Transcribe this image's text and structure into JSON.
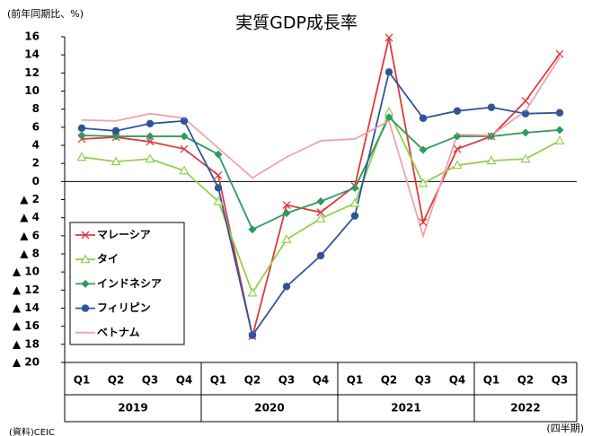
{
  "chart_data": {
    "type": "line",
    "title": "実質GDP成長率",
    "y_label": "(前年同期比、%)",
    "x_unit": "(四半期)",
    "source": "(資料)CEIC",
    "categories": [
      "Q1",
      "Q2",
      "Q3",
      "Q4",
      "Q1",
      "Q2",
      "Q3",
      "Q4",
      "Q1",
      "Q2",
      "Q3",
      "Q4",
      "Q1",
      "Q2",
      "Q3"
    ],
    "years": [
      "2019",
      "2020",
      "2021",
      "2022"
    ],
    "series": [
      {
        "name": "マレーシア",
        "color": "#e0393b",
        "marker": "x",
        "values": [
          4.7,
          4.9,
          4.4,
          3.6,
          0.7,
          -17.1,
          -2.6,
          -3.4,
          -0.5,
          15.9,
          -4.5,
          3.6,
          5.0,
          8.9,
          14.1
        ]
      },
      {
        "name": "タイ",
        "color": "#92cf4f",
        "marker": "triangle",
        "values": [
          2.7,
          2.2,
          2.5,
          1.2,
          -2.2,
          -12.3,
          -6.4,
          -4.1,
          -2.4,
          7.7,
          -0.2,
          1.8,
          2.3,
          2.5,
          4.5
        ]
      },
      {
        "name": "インドネシア",
        "color": "#2e9a5c",
        "marker": "diamond",
        "values": [
          5.1,
          5.0,
          5.0,
          5.0,
          3.0,
          -5.3,
          -3.5,
          -2.2,
          -0.7,
          7.1,
          3.5,
          5.0,
          5.0,
          5.4,
          5.7
        ]
      },
      {
        "name": "フィリピン",
        "color": "#2f5597",
        "marker": "circle",
        "values": [
          5.9,
          5.6,
          6.4,
          6.7,
          -0.7,
          -17.0,
          -11.6,
          -8.2,
          -3.8,
          12.1,
          7.0,
          7.8,
          8.2,
          7.5,
          7.6
        ]
      },
      {
        "name": "ベトナム",
        "color": "#f3a3a6",
        "marker": "none",
        "values": [
          6.8,
          6.7,
          7.5,
          7.0,
          3.7,
          0.4,
          2.7,
          4.5,
          4.7,
          6.7,
          -6.0,
          5.2,
          5.1,
          7.8,
          13.7
        ]
      }
    ],
    "ylim": [
      -20,
      16
    ],
    "yticks": [
      16,
      14,
      12,
      10,
      8,
      6,
      4,
      2,
      0,
      {
        "value": -2,
        "label": "▲ 2"
      },
      {
        "value": -4,
        "label": "▲ 4"
      },
      {
        "value": -6,
        "label": "▲ 6"
      },
      {
        "value": -8,
        "label": "▲ 8"
      },
      {
        "value": -10,
        "label": "▲ 10"
      },
      {
        "value": -12,
        "label": "▲ 12"
      },
      {
        "value": -14,
        "label": "▲ 14"
      },
      {
        "value": -16,
        "label": "▲ 16"
      },
      {
        "value": -18,
        "label": "▲ 18"
      },
      {
        "value": -20,
        "label": "▲ 20"
      }
    ],
    "grid": false,
    "legend": "lower-left"
  }
}
